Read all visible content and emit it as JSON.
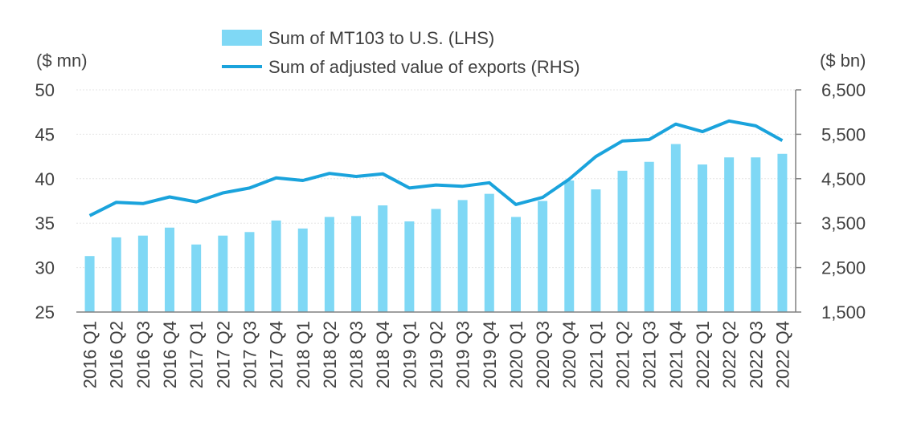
{
  "chart_data": {
    "type": "bar",
    "categories": [
      "2016 Q1",
      "2016 Q2",
      "2016 Q3",
      "2016 Q4",
      "2017 Q1",
      "2017 Q2",
      "2017 Q3",
      "2017 Q4",
      "2018 Q1",
      "2018 Q2",
      "2018 Q3",
      "2018 Q4",
      "2019 Q1",
      "2019 Q2",
      "2019 Q3",
      "2019 Q4",
      "2020 Q1",
      "2020 Q3",
      "2020 Q4",
      "2021 Q1",
      "2021 Q2",
      "2021 Q3",
      "2021 Q4",
      "2022 Q1",
      "2022 Q2",
      "2022 Q3",
      "2022 Q4"
    ],
    "series": [
      {
        "name": "Sum of MT103 to U.S. (LHS)",
        "type": "bar",
        "axis": "left",
        "color": "#7fd8f5",
        "values": [
          31.3,
          33.4,
          33.6,
          34.5,
          32.6,
          33.6,
          34.0,
          35.3,
          34.4,
          35.7,
          35.8,
          37.0,
          35.2,
          36.6,
          37.6,
          38.3,
          35.7,
          37.5,
          39.8,
          38.8,
          40.9,
          41.9,
          43.9,
          41.6,
          42.4,
          42.4,
          42.8
        ]
      },
      {
        "name": "Sum of adjusted value of exports (RHS)",
        "type": "line",
        "axis": "right",
        "color": "#1aa3dc",
        "values": [
          3670,
          3970,
          3940,
          4090,
          3980,
          4180,
          4290,
          4520,
          4460,
          4620,
          4550,
          4610,
          4290,
          4360,
          4330,
          4410,
          3920,
          4080,
          4490,
          5000,
          5350,
          5380,
          5730,
          5560,
          5800,
          5690,
          5360
        ]
      }
    ],
    "left_axis": {
      "unit_label": "($ mn)",
      "ylim": [
        25,
        50
      ],
      "ticks": [
        "25",
        "30",
        "35",
        "40",
        "45",
        "50"
      ]
    },
    "right_axis": {
      "unit_label": "($ bn)",
      "ylim": [
        1500,
        6500
      ],
      "ticks": [
        "1,500",
        "2,500",
        "3,500",
        "4,500",
        "5,500",
        "6,500"
      ]
    },
    "grid": true,
    "legend_position": "top-center"
  }
}
